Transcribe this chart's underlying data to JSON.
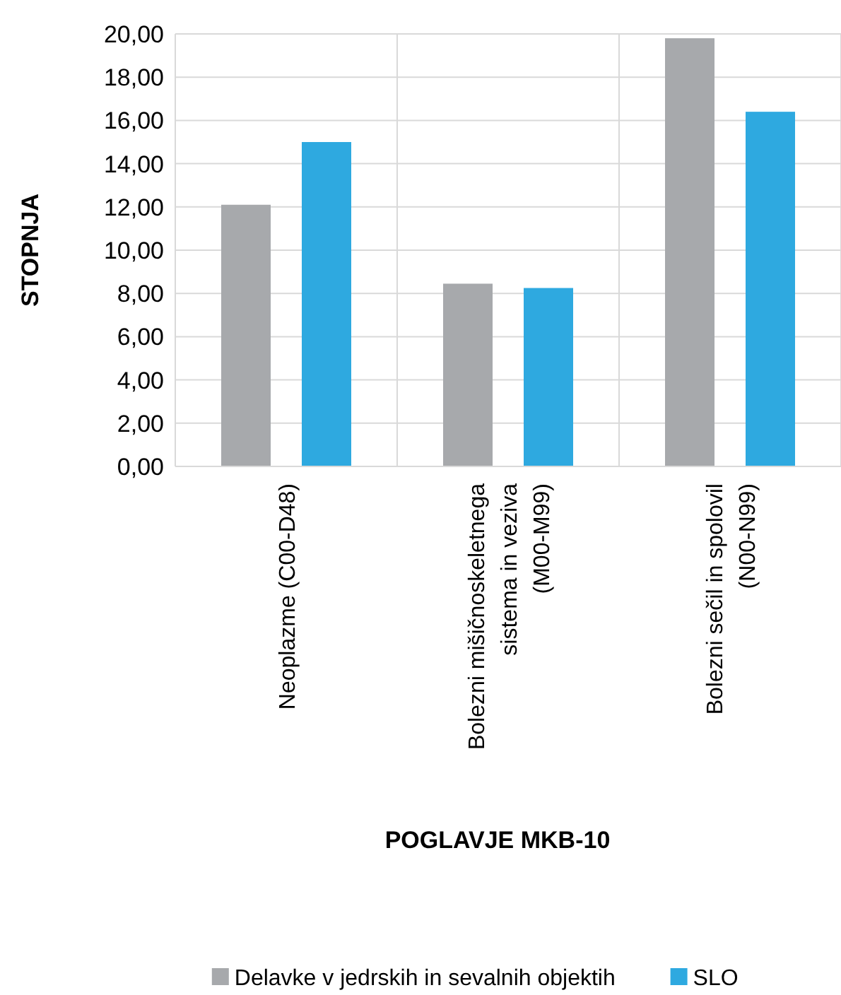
{
  "chart_data": {
    "type": "bar",
    "xlabel": "POGLAVJE MKB-10",
    "ylabel": "STOPNJA",
    "categories": [
      "Neoplazme (C00-D48)",
      "Bolezni mišičnoskeletnega sistema in veziva (M00-M99)",
      "Bolezni sečil in spolovil (N00-N99)"
    ],
    "series": [
      {
        "name": "Delavke v jedrskih in sevalnih objektih",
        "color": "#a7a9ac",
        "values": [
          12.1,
          8.45,
          19.8
        ]
      },
      {
        "name": "SLO",
        "color": "#2ea9e0",
        "values": [
          15.0,
          8.25,
          16.4
        ]
      }
    ],
    "ylim": [
      0,
      20
    ],
    "yticks": [
      {
        "value": 0,
        "label": "0,00"
      },
      {
        "value": 2,
        "label": "2,00"
      },
      {
        "value": 4,
        "label": "4,00"
      },
      {
        "value": 6,
        "label": "6,00"
      },
      {
        "value": 8,
        "label": "8,00"
      },
      {
        "value": 10,
        "label": "10,00"
      },
      {
        "value": 12,
        "label": "12,00"
      },
      {
        "value": 14,
        "label": "14,00"
      },
      {
        "value": 16,
        "label": "16,00"
      },
      {
        "value": 18,
        "label": "18,00"
      },
      {
        "value": 20,
        "label": "20,00"
      }
    ],
    "grid": true,
    "legend": "bottom"
  }
}
